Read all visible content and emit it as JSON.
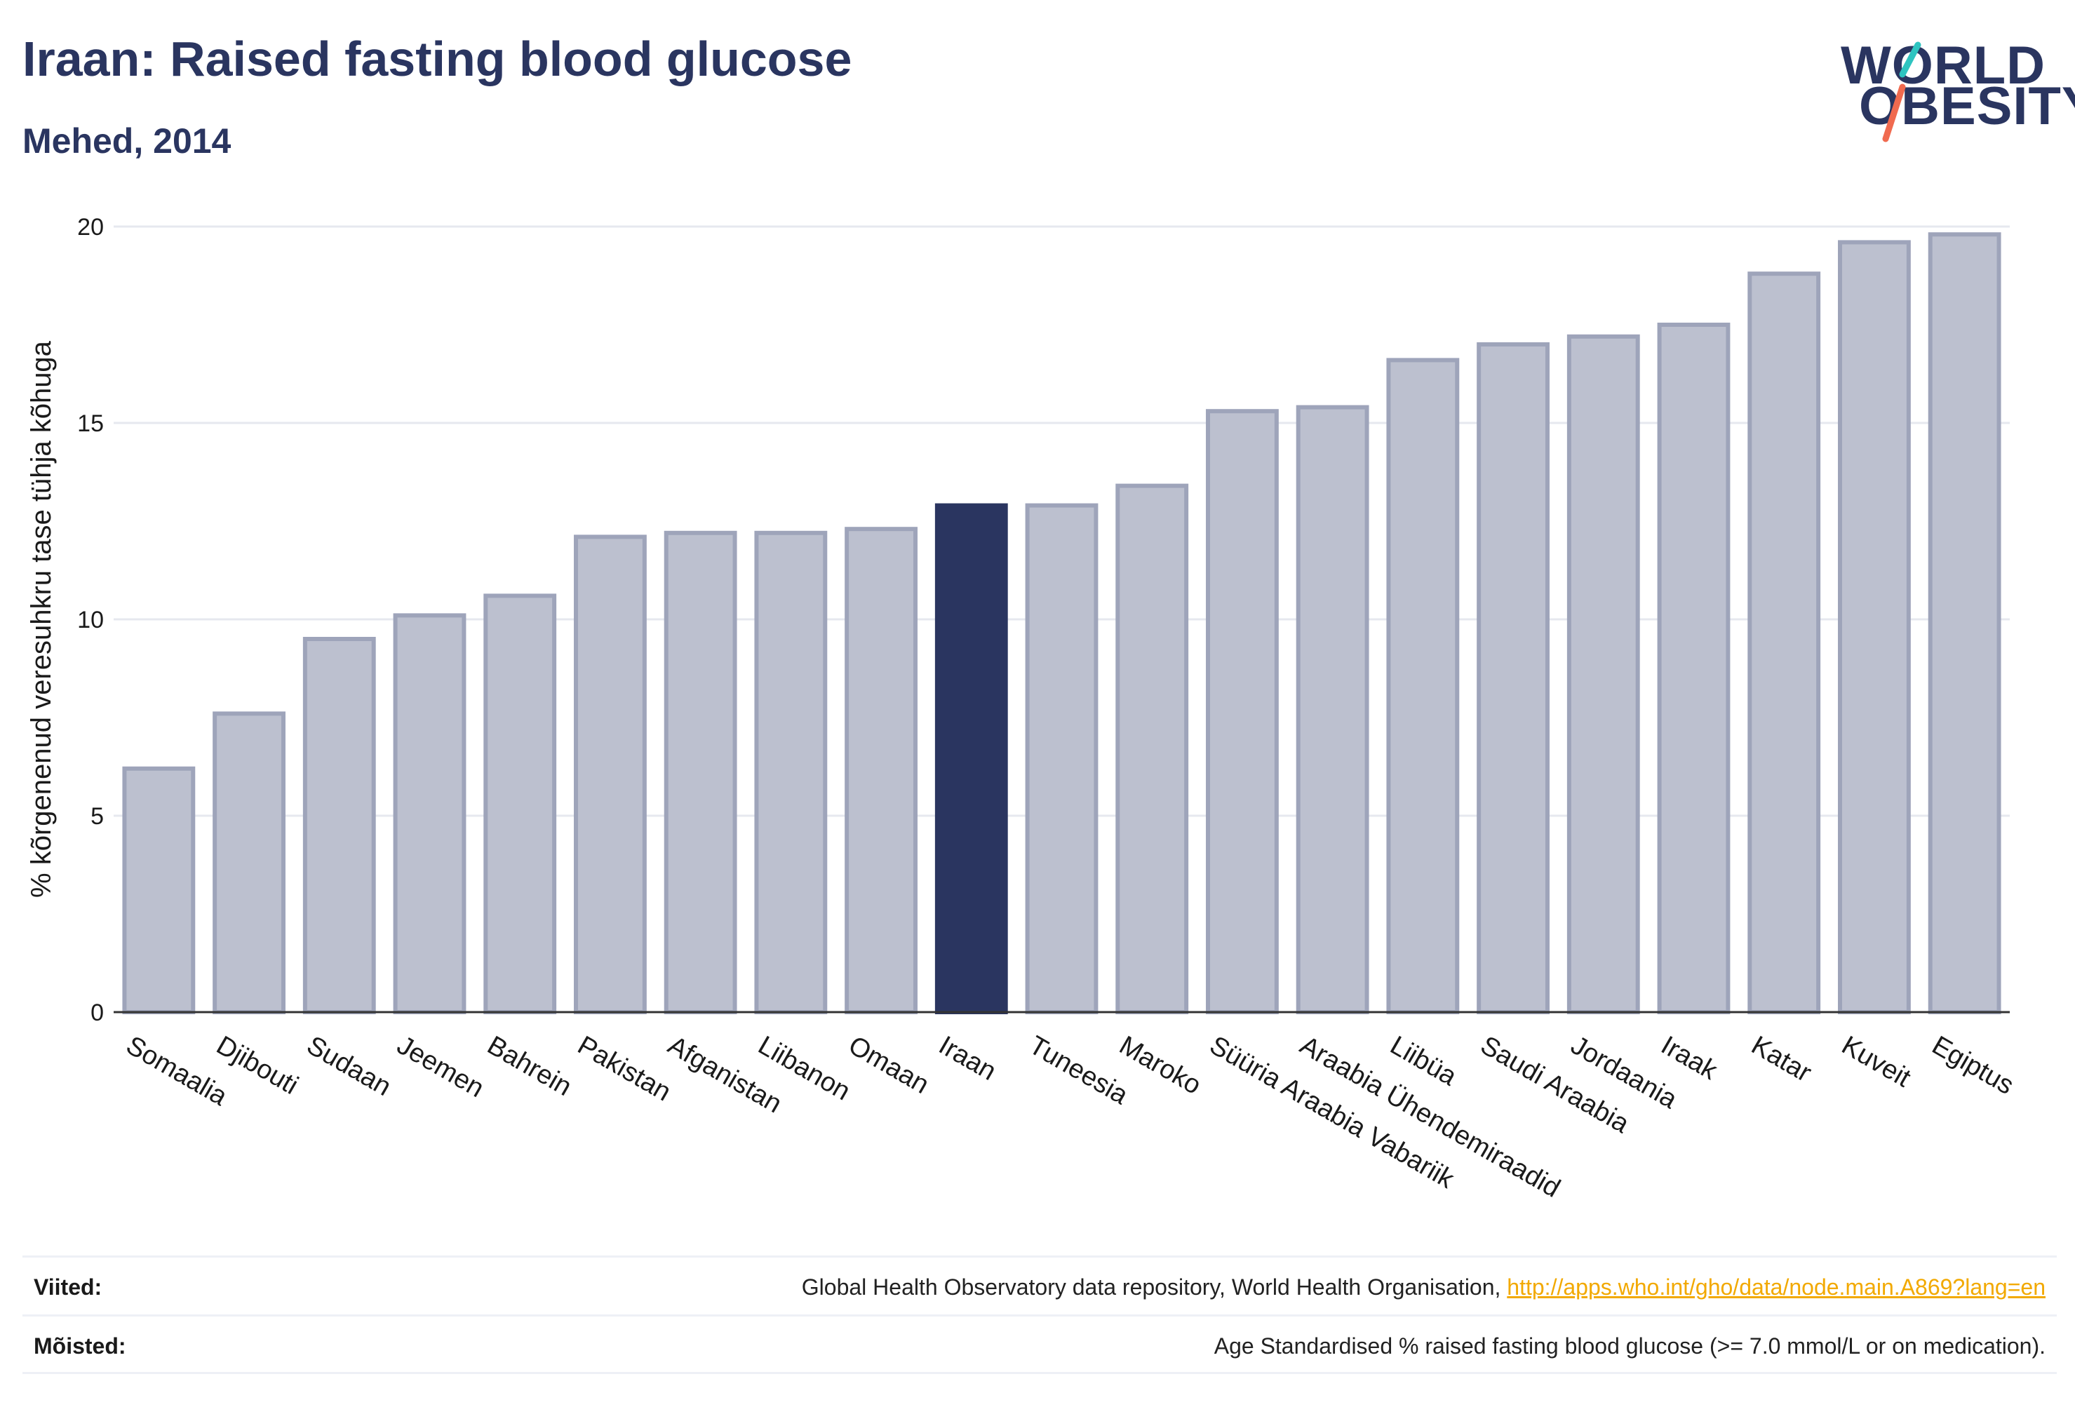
{
  "header": {
    "title": "Iraan: Raised fasting blood glucose",
    "subtitle": "Mehed, 2014"
  },
  "logo": {
    "line1": "WORLD",
    "line2": "OBESITY",
    "accent_colors": [
      "#2ec4c0",
      "#f06a4f"
    ]
  },
  "chart_data": {
    "type": "bar",
    "categories": [
      "Somaalia",
      "Djibouti",
      "Sudaan",
      "Jeemen",
      "Bahrein",
      "Pakistan",
      "Afganistan",
      "Liibanon",
      "Omaan",
      "Iraan",
      "Tuneesia",
      "Maroko",
      "Süüria Araabia Vabariik",
      "Araabia Ühendemiraadid",
      "Liibüa",
      "Saudi Araabia",
      "Jordaania",
      "Iraak",
      "Katar",
      "Kuveit",
      "Egiptus"
    ],
    "values": [
      6.2,
      7.6,
      9.5,
      10.1,
      10.6,
      12.1,
      12.2,
      12.2,
      12.3,
      12.9,
      12.9,
      13.4,
      15.3,
      15.4,
      16.6,
      17.0,
      17.2,
      17.5,
      18.8,
      19.6,
      19.8
    ],
    "highlight": "Iraan",
    "ylabel": "% kõrgenenud veresuhkru tase tühja kõhuga",
    "ylim": [
      0,
      20
    ],
    "yticks": [
      0,
      5,
      10,
      15,
      20
    ],
    "grid": true,
    "colors": {
      "bar": "#bcc0cf",
      "bar_border": "#9ea4ba",
      "highlight": "#2a3560"
    }
  },
  "footer": {
    "sources_label": "Viited:",
    "sources_text": "Global Health Observatory data repository, World Health Organisation, ",
    "sources_link": "http://apps.who.int/gho/data/node.main.A869?lang=en",
    "definitions_label": "Mõisted:",
    "definitions_text": "Age Standardised % raised fasting blood glucose (>= 7.0 mmol/L or on medication)."
  }
}
